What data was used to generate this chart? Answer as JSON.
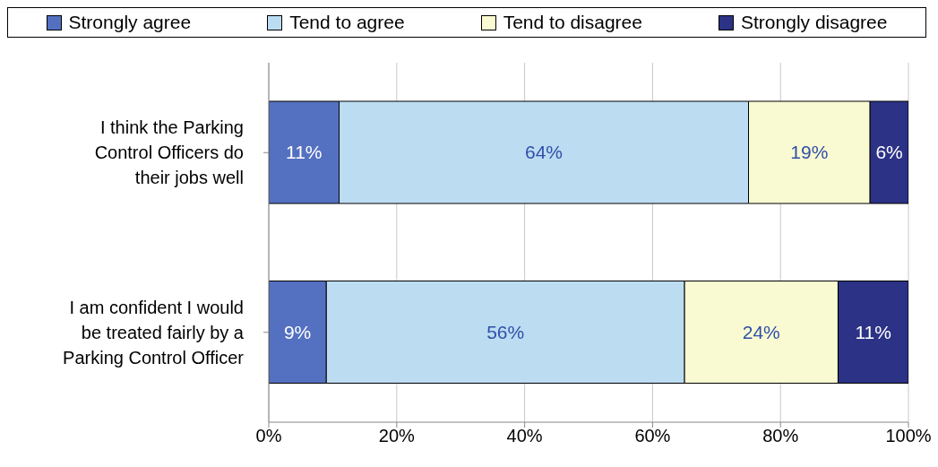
{
  "chart_data": {
    "type": "bar",
    "orientation": "horizontal",
    "stacked": true,
    "categories": [
      "I think the Parking Control Officers do their jobs well",
      "I am confident I would be treated fairly by a Parking Control Officer"
    ],
    "series": [
      {
        "name": "Strongly agree",
        "color": "#5470c0",
        "values": [
          11,
          9
        ],
        "value_labels": [
          "11%",
          "9%"
        ]
      },
      {
        "name": "Tend to agree",
        "color": "#bcdcf2",
        "values": [
          64,
          56
        ],
        "value_labels": [
          "64%",
          "56%"
        ]
      },
      {
        "name": "Tend to disagree",
        "color": "#fafad2",
        "values": [
          19,
          24
        ],
        "value_labels": [
          "19%",
          "24%"
        ]
      },
      {
        "name": "Strongly disagree",
        "color": "#2c3285",
        "values": [
          6,
          11
        ],
        "value_labels": [
          "6%",
          "11%"
        ]
      }
    ],
    "xlim": [
      0,
      100
    ],
    "xticks": [
      {
        "value": 0,
        "label": "0%"
      },
      {
        "value": 20,
        "label": "20%"
      },
      {
        "value": 40,
        "label": "40%"
      },
      {
        "value": 60,
        "label": "60%"
      },
      {
        "value": 80,
        "label": "80%"
      },
      {
        "value": 100,
        "label": "100%"
      }
    ],
    "grid": "x",
    "legend": "top"
  }
}
